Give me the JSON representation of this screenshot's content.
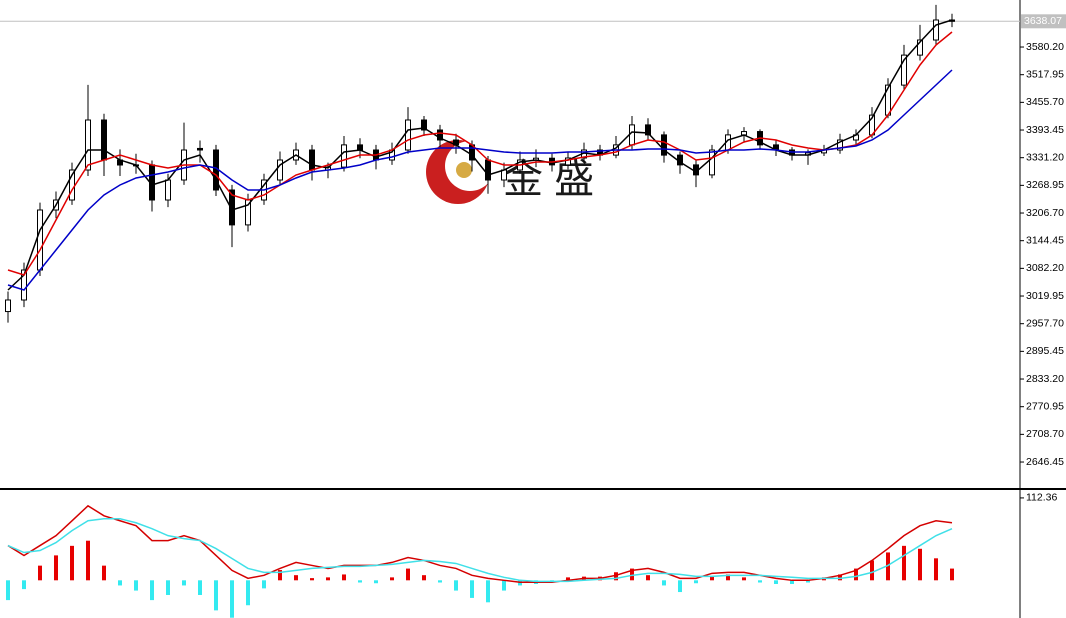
{
  "chart_data": [
    {
      "type": "candlestick",
      "watermark": "金 盛",
      "last_price": 3638.07,
      "ylim": [
        2588,
        3686
      ],
      "yticks": [
        2646.45,
        {
          "value": 2708.7,
          "label": "2708.70"
        },
        2770.95,
        {
          "value": 2833.2,
          "label": "2833.20"
        },
        2895.45,
        {
          "value": 2957.7,
          "label": "2957.70"
        },
        3019.95,
        {
          "value": 3082.2,
          "label": "3082.20"
        },
        3144.45,
        {
          "value": 3206.7,
          "label": "3206.70"
        },
        3268.95,
        {
          "value": 3331.2,
          "label": "3331.20"
        },
        3393.45,
        {
          "value": 3455.7,
          "label": "3455.70"
        },
        3517.95,
        {
          "value": 3580.2,
          "label": "3580.20"
        }
      ],
      "up_color": "#ffffff",
      "down_color": "#000000",
      "ohlc": [
        [
          2985,
          3030,
          2960,
          3011
        ],
        [
          3011,
          3095,
          2995,
          3078.5
        ],
        [
          3078.5,
          3230,
          3065,
          3213.5
        ],
        [
          3213.5,
          3255,
          3195,
          3236
        ],
        [
          3236,
          3320,
          3225,
          3303.5
        ],
        [
          3303.5,
          3495,
          3290,
          3416
        ],
        [
          3416,
          3430,
          3290,
          3326
        ],
        [
          3326,
          3350,
          3290,
          3314.75
        ],
        [
          3314.75,
          3340,
          3295,
          3315
        ],
        [
          3315,
          3325,
          3210,
          3236
        ],
        [
          3236,
          3295,
          3220,
          3281
        ],
        [
          3281,
          3410,
          3270,
          3348.5
        ],
        [
          3352,
          3370,
          3320,
          3348.5
        ],
        [
          3348.5,
          3360,
          3245,
          3258.5
        ],
        [
          3258.5,
          3270,
          3130,
          3180
        ],
        [
          3180,
          3250,
          3165,
          3236
        ],
        [
          3236,
          3295,
          3225,
          3281
        ],
        [
          3281,
          3345,
          3270,
          3326
        ],
        [
          3326,
          3365,
          3315,
          3348.5
        ],
        [
          3348.5,
          3360,
          3280,
          3303.5
        ],
        [
          3303.5,
          3320,
          3285,
          3310
        ],
        [
          3310,
          3380,
          3300,
          3360
        ],
        [
          3360,
          3375,
          3330,
          3348.5
        ],
        [
          3348.5,
          3360,
          3305,
          3326
        ],
        [
          3326,
          3365,
          3315,
          3348.5
        ],
        [
          3348.5,
          3445,
          3340,
          3416
        ],
        [
          3416,
          3425,
          3380,
          3393.5
        ],
        [
          3393.5,
          3405,
          3355,
          3371
        ],
        [
          3371,
          3385,
          3340,
          3360
        ],
        [
          3360,
          3370,
          3300,
          3326
        ],
        [
          3326,
          3335,
          3250,
          3281
        ],
        [
          3281,
          3320,
          3265,
          3303.5
        ],
        [
          3303.5,
          3345,
          3295,
          3326
        ],
        [
          3326,
          3350,
          3310,
          3330
        ],
        [
          3330,
          3340,
          3300,
          3315
        ],
        [
          3315,
          3345,
          3305,
          3330.5
        ],
        [
          3330.5,
          3365,
          3320,
          3348.5
        ],
        [
          3348.5,
          3360,
          3325,
          3337
        ],
        [
          3337,
          3380,
          3330,
          3360
        ],
        [
          3360,
          3425,
          3350,
          3405
        ],
        [
          3405,
          3420,
          3370,
          3382.5
        ],
        [
          3382.5,
          3390,
          3320,
          3337
        ],
        [
          3337,
          3345,
          3295,
          3315
        ],
        [
          3315,
          3325,
          3265,
          3292.5
        ],
        [
          3292.5,
          3360,
          3285,
          3348.5
        ],
        [
          3348.5,
          3395,
          3340,
          3382.5
        ],
        [
          3382.5,
          3400,
          3365,
          3390
        ],
        [
          3390,
          3395,
          3350,
          3360
        ],
        [
          3360,
          3370,
          3335,
          3348.5
        ],
        [
          3348.5,
          3355,
          3325,
          3337
        ],
        [
          3337,
          3350,
          3315,
          3342
        ],
        [
          3342,
          3360,
          3335,
          3348.5
        ],
        [
          3348.5,
          3385,
          3340,
          3371
        ],
        [
          3371,
          3395,
          3360,
          3382.5
        ],
        [
          3382.5,
          3445,
          3375,
          3427
        ],
        [
          3427,
          3510,
          3420,
          3494.5
        ],
        [
          3494.5,
          3585,
          3485,
          3562
        ],
        [
          3562,
          3630,
          3550,
          3596
        ],
        [
          3596,
          3675,
          3585,
          3641
        ],
        [
          3641,
          3655,
          3625,
          3638.07
        ]
      ],
      "moving_averages": [
        {
          "color": "#000000",
          "values": [
            3033.5,
            3067.25,
            3168.5,
            3224.75,
            3292.25,
            3348.5,
            3348.5,
            3326,
            3314.75,
            3269.75,
            3281,
            3326,
            3337.25,
            3281,
            3213.5,
            3224.75,
            3269.75,
            3314.75,
            3337.25,
            3314.75,
            3308,
            3344,
            3348.5,
            3332.75,
            3344,
            3393.5,
            3398,
            3375.5,
            3359.75,
            3337.25,
            3292.25,
            3303.5,
            3321.5,
            3326,
            3319.25,
            3326,
            3341.75,
            3337.25,
            3353,
            3389,
            3386.75,
            3348.5,
            3321.5,
            3299,
            3330.5,
            3371,
            3382.25,
            3366.5,
            3348.5,
            3337.25,
            3337.25,
            3348.5,
            3366.5,
            3382.25,
            3420.5,
            3488,
            3551,
            3591.5,
            3629.75,
            3641
          ]
        },
        {
          "color": "#e00000",
          "values": [
            3078.5,
            3067.25,
            3123.5,
            3191,
            3258.5,
            3314.75,
            3326,
            3337.25,
            3326,
            3314.75,
            3308,
            3314.75,
            3314.75,
            3292.25,
            3247.25,
            3236,
            3247.25,
            3269.75,
            3292.25,
            3303.5,
            3314.75,
            3326,
            3337.25,
            3337.25,
            3348.5,
            3371,
            3382.25,
            3386.75,
            3382.25,
            3359.75,
            3326,
            3314.75,
            3314.75,
            3321.5,
            3321.5,
            3326,
            3332.75,
            3337.25,
            3344,
            3359.75,
            3371,
            3366.5,
            3348.5,
            3326,
            3330.5,
            3348.5,
            3366.5,
            3375.5,
            3371,
            3359.75,
            3353,
            3348.5,
            3353,
            3359.75,
            3382.25,
            3427.25,
            3483.5,
            3539.75,
            3584.75,
            3614
          ]
        },
        {
          "color": "#0000c8",
          "values": [
            3044.75,
            3033.5,
            3078.5,
            3123.5,
            3168.5,
            3213.5,
            3247.25,
            3269.75,
            3285.5,
            3292.25,
            3299,
            3308,
            3314.75,
            3308,
            3281,
            3258.5,
            3258.5,
            3269.75,
            3285.5,
            3299,
            3303.5,
            3308,
            3314.75,
            3326,
            3332.75,
            3344,
            3348.5,
            3353,
            3353,
            3353,
            3348.5,
            3344,
            3341.75,
            3341.75,
            3341.75,
            3344,
            3344,
            3346.25,
            3348.5,
            3348.5,
            3350.75,
            3350.75,
            3348.5,
            3341.75,
            3344,
            3348.5,
            3348.5,
            3350.75,
            3348.5,
            3344,
            3344,
            3348.5,
            3353,
            3357.5,
            3371,
            3393.5,
            3427.25,
            3461,
            3494.75,
            3528.5
          ]
        }
      ]
    },
    {
      "type": "macd",
      "ylim": [
        -51.4,
        121.8
      ],
      "yticks": [
        112.36
      ],
      "positive_color": "#e60000",
      "negative_color": "#33eaf0",
      "histogram": [
        -27,
        -12,
        20,
        34,
        47,
        54,
        20,
        -7,
        -14,
        -27,
        -20,
        -7,
        -20,
        -41,
        -51,
        -34,
        -11,
        14,
        7,
        3,
        4,
        8,
        -3,
        -4,
        4,
        16,
        7,
        -3,
        -14,
        -24,
        -30,
        -14,
        -7,
        -5,
        -3,
        4,
        5,
        5,
        11,
        16,
        7,
        -7,
        -16,
        -4,
        5,
        8,
        4,
        -3,
        -5,
        -5,
        -3,
        4,
        8,
        16,
        27,
        38,
        47,
        43,
        30,
        16
      ],
      "lines": [
        {
          "color": "#d40000",
          "values": [
            47.4,
            33.9,
            47.4,
            60.9,
            81.2,
            101.6,
            88,
            81.2,
            74.5,
            54.2,
            54.2,
            60.9,
            54.2,
            33.9,
            13.5,
            2.7,
            6.8,
            16.2,
            24.4,
            20.3,
            16.2,
            20.3,
            20.3,
            20.3,
            24.4,
            31.1,
            27.1,
            20.3,
            16.2,
            6.8,
            2.7,
            0,
            -2.7,
            -2.7,
            -2.7,
            0,
            2.7,
            2.7,
            6.8,
            13.5,
            16.2,
            10.8,
            2.7,
            2.7,
            9.5,
            10.8,
            10.8,
            6.8,
            2.7,
            0,
            0,
            2.7,
            6.8,
            13.5,
            27.1,
            43.3,
            60.9,
            74.5,
            81.2,
            78.5
          ]
        },
        {
          "color": "#40e0e8",
          "values": [
            47.4,
            37.9,
            40.6,
            51.5,
            67.7,
            81.2,
            83.9,
            83.9,
            78.5,
            70.4,
            60.9,
            56.9,
            54.2,
            43.3,
            29.8,
            16.2,
            10.8,
            10.8,
            13.5,
            16.2,
            17.6,
            19,
            19,
            20.3,
            21.7,
            24.4,
            27.1,
            25.7,
            23,
            16.2,
            9.5,
            4.1,
            0,
            -1.4,
            -1.4,
            -1.4,
            0,
            1.4,
            2.7,
            6.8,
            9.5,
            9.5,
            8.1,
            5.4,
            5.4,
            6.8,
            6.8,
            6.8,
            5.4,
            4.1,
            2.7,
            2.7,
            2.7,
            5.4,
            10.8,
            20.3,
            33.9,
            47.4,
            60.9,
            70.4
          ]
        }
      ]
    }
  ]
}
